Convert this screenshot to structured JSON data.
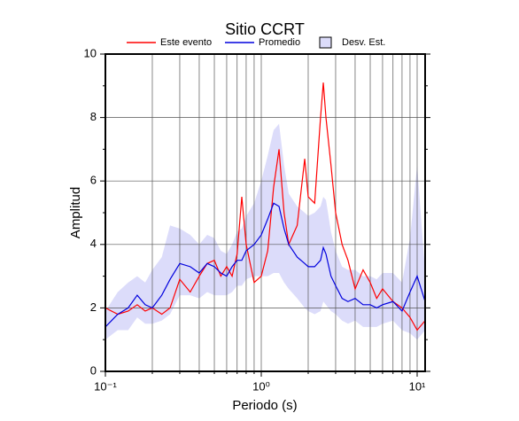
{
  "chart_data": {
    "type": "line",
    "title": "Sitio CCRT",
    "xlabel": "Periodo (s)",
    "ylabel": "Amplitud",
    "xscale": "log",
    "xlim": [
      0.1,
      11.25
    ],
    "ylim": [
      0,
      10
    ],
    "xticks": [
      {
        "value": 0.1,
        "label": "10⁻¹"
      },
      {
        "value": 1,
        "label": "10⁰"
      },
      {
        "value": 10,
        "label": "10¹"
      }
    ],
    "xminorticks": [
      0.2,
      0.3,
      0.4,
      0.5,
      0.6,
      0.7,
      0.8,
      0.9,
      2,
      3,
      4,
      5,
      6,
      7,
      8,
      9
    ],
    "yticks": [
      0,
      2,
      4,
      6,
      8,
      10
    ],
    "yminorticks": [
      1,
      3,
      5,
      7,
      9
    ],
    "grid": true,
    "x": [
      0.1,
      0.12,
      0.14,
      0.16,
      0.18,
      0.2,
      0.23,
      0.26,
      0.3,
      0.35,
      0.4,
      0.45,
      0.5,
      0.55,
      0.6,
      0.65,
      0.7,
      0.75,
      0.8,
      0.9,
      1.0,
      1.1,
      1.2,
      1.3,
      1.4,
      1.5,
      1.7,
      1.9,
      2.0,
      2.2,
      2.4,
      2.5,
      2.6,
      2.8,
      3.0,
      3.3,
      3.6,
      4.0,
      4.5,
      5.0,
      5.5,
      6.0,
      7.0,
      8.0,
      9.0,
      10,
      11.25
    ],
    "band": {
      "name": "Desv. Est.",
      "color": "#dcdcfa",
      "lower": [
        1.0,
        1.3,
        1.3,
        1.7,
        1.5,
        1.5,
        1.6,
        1.8,
        2.4,
        2.4,
        2.3,
        2.5,
        2.4,
        2.4,
        2.4,
        2.5,
        2.7,
        2.7,
        2.9,
        3.0,
        3.0,
        3.0,
        3.1,
        3.1,
        2.8,
        2.6,
        2.3,
        2.0,
        1.9,
        1.8,
        1.9,
        2.2,
        2.1,
        1.9,
        1.8,
        1.6,
        1.5,
        1.6,
        1.4,
        1.4,
        1.4,
        1.5,
        1.6,
        1.3,
        1.2,
        1.0,
        1.3
      ],
      "upper": [
        1.9,
        2.5,
        2.8,
        3.0,
        2.8,
        3.2,
        3.6,
        4.6,
        4.5,
        4.3,
        4.0,
        4.3,
        4.2,
        3.8,
        3.7,
        4.0,
        4.4,
        4.5,
        4.9,
        5.3,
        6.0,
        6.8,
        7.6,
        7.8,
        6.5,
        5.6,
        5.2,
        5.0,
        4.9,
        5.0,
        5.2,
        5.5,
        5.4,
        4.4,
        3.8,
        3.3,
        3.2,
        3.2,
        3.0,
        3.0,
        2.9,
        3.1,
        3.1,
        2.8,
        4.2,
        6.5,
        3.1
      ]
    },
    "series": [
      {
        "name": "Este evento",
        "color": "#ff0000",
        "values": [
          2.0,
          1.8,
          1.9,
          2.1,
          1.9,
          2.0,
          1.8,
          2.0,
          2.9,
          2.5,
          3.0,
          3.4,
          3.5,
          3.0,
          3.3,
          3.0,
          3.7,
          5.5,
          4.0,
          2.8,
          3.0,
          3.8,
          5.8,
          7.0,
          5.0,
          4.0,
          4.6,
          6.7,
          5.5,
          5.3,
          8.0,
          9.1,
          8.0,
          6.5,
          5.0,
          4.0,
          3.5,
          2.6,
          3.2,
          2.8,
          2.3,
          2.6,
          2.2,
          2.0,
          1.7,
          1.3,
          1.6
        ]
      },
      {
        "name": "Promedio",
        "color": "#0000dd",
        "values": [
          1.4,
          1.8,
          2.0,
          2.4,
          2.1,
          2.0,
          2.4,
          2.9,
          3.4,
          3.3,
          3.1,
          3.4,
          3.3,
          3.1,
          3.0,
          3.3,
          3.5,
          3.5,
          3.8,
          4.0,
          4.3,
          4.8,
          5.3,
          5.2,
          4.5,
          4.0,
          3.6,
          3.4,
          3.3,
          3.3,
          3.5,
          3.9,
          3.7,
          3.0,
          2.7,
          2.3,
          2.2,
          2.3,
          2.1,
          2.1,
          2.0,
          2.1,
          2.2,
          1.9,
          2.5,
          3.0,
          2.2
        ]
      }
    ]
  }
}
